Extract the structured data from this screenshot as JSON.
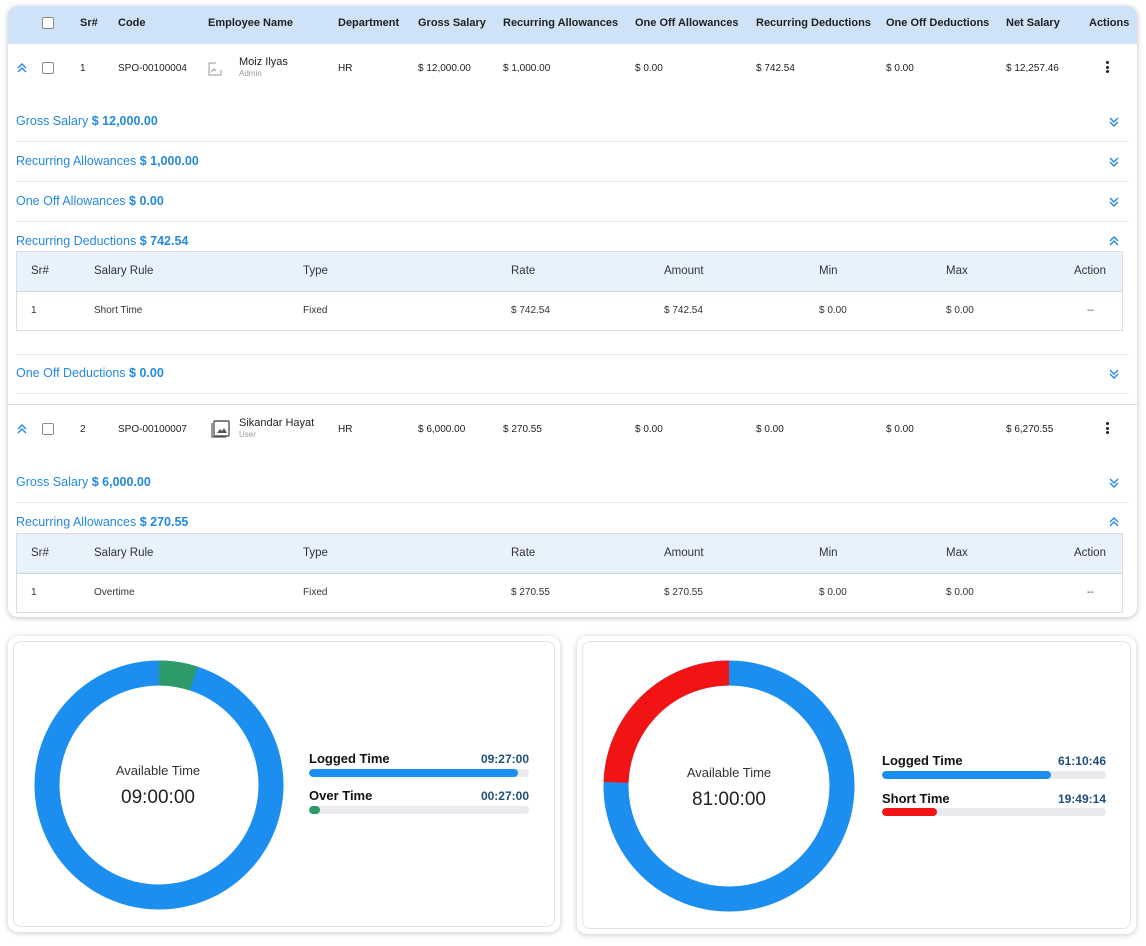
{
  "colors": {
    "accent": "#2389e0",
    "donut_blue": "#1b8ef0",
    "overtime_green": "#2e9a6a",
    "short_red": "#f21414",
    "header_bg": "#cfe3f8"
  },
  "table": {
    "headers": [
      "Sr#",
      "Code",
      "Employee Name",
      "Department",
      "Gross Salary",
      "Recurring Allowances",
      "One Off Allowances",
      "Recurring Deductions",
      "One Off Deductions",
      "Net Salary",
      "Actions"
    ],
    "rows": [
      {
        "sr": "1",
        "code": "SPO-00100004",
        "name": "Moiz Ilyas",
        "role": "Admin",
        "department": "HR",
        "gross": "$ 12,000.00",
        "recurring_allowances": "$ 1,000.00",
        "one_off_allowances": "$ 0.00",
        "recurring_deductions": "$ 742.54",
        "one_off_deductions": "$ 0.00",
        "net": "$ 12,257.46",
        "sections": [
          {
            "label": "Gross Salary",
            "amount": "$ 12,000.00",
            "expanded": false
          },
          {
            "label": "Recurring Allowances",
            "amount": "$ 1,000.00",
            "expanded": false
          },
          {
            "label": "One Off Allowances",
            "amount": "$ 0.00",
            "expanded": false
          },
          {
            "label": "Recurring Deductions",
            "amount": "$ 742.54",
            "expanded": true
          },
          {
            "label": "One Off Deductions",
            "amount": "$ 0.00",
            "expanded": false
          }
        ]
      },
      {
        "sr": "2",
        "code": "SPO-00100007",
        "name": "Sikandar Hayat",
        "role": "User",
        "department": "HR",
        "gross": "$ 6,000.00",
        "recurring_allowances": "$ 270.55",
        "one_off_allowances": "$ 0.00",
        "recurring_deductions": "$ 0.00",
        "one_off_deductions": "$ 0.00",
        "net": "$ 6,270.55",
        "sections": [
          {
            "label": "Gross Salary",
            "amount": "$ 6,000.00",
            "expanded": false
          },
          {
            "label": "Recurring Allowances",
            "amount": "$ 270.55",
            "expanded": true
          }
        ]
      }
    ]
  },
  "subtable": {
    "headers": [
      "Sr#",
      "Salary Rule",
      "Type",
      "Rate",
      "Amount",
      "Min",
      "Max",
      "Action"
    ],
    "deductions_row": {
      "sr": "1",
      "rule": "Short Time",
      "type": "Fixed",
      "rate": "$ 742.54",
      "amount": "$ 742.54",
      "min": "$ 0.00",
      "max": "$ 0.00",
      "action": "--"
    },
    "allowances_row": {
      "sr": "1",
      "rule": "Overtime",
      "type": "Fixed",
      "rate": "$ 270.55",
      "amount": "$ 270.55",
      "min": "$ 0.00",
      "max": "$ 0.00",
      "action": "--"
    }
  },
  "cards": [
    {
      "center_label": "Available Time",
      "center_value": "09:00:00",
      "donut_segments": [
        {
          "color": "#2e9a6a",
          "start": 0.0,
          "fraction": 0.05
        }
      ],
      "bars": [
        {
          "label": "Logged Time",
          "value": "09:27:00",
          "fraction": 0.95,
          "color": "#1b8ef0"
        },
        {
          "label": "Over Time",
          "value": "00:27:00",
          "fraction": 0.05,
          "color": "#2e9a6a"
        }
      ]
    },
    {
      "center_label": "Available Time",
      "center_value": "81:00:00",
      "donut_segments": [
        {
          "color": "#f21414",
          "start": 0.755,
          "fraction": 0.245
        }
      ],
      "bars": [
        {
          "label": "Logged Time",
          "value": "61:10:46",
          "fraction": 0.755,
          "color": "#1b8ef0"
        },
        {
          "label": "Short Time",
          "value": "19:49:14",
          "fraction": 0.245,
          "color": "#f21414"
        }
      ]
    }
  ]
}
